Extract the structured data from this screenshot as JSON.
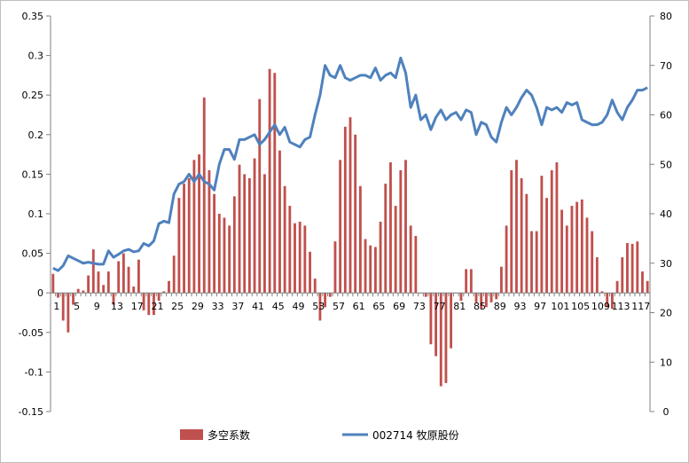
{
  "chart_data": {
    "type": "bar+line",
    "title": "",
    "xlabel": "",
    "ylabel": "",
    "x": [
      1,
      2,
      3,
      4,
      5,
      6,
      7,
      8,
      9,
      10,
      11,
      12,
      13,
      14,
      15,
      16,
      17,
      18,
      19,
      20,
      21,
      22,
      23,
      24,
      25,
      26,
      27,
      28,
      29,
      30,
      31,
      32,
      33,
      34,
      35,
      36,
      37,
      38,
      39,
      40,
      41,
      42,
      43,
      44,
      45,
      46,
      47,
      48,
      49,
      50,
      51,
      52,
      53,
      54,
      55,
      56,
      57,
      58,
      59,
      60,
      61,
      62,
      63,
      64,
      65,
      66,
      67,
      68,
      69,
      70,
      71,
      72,
      73,
      74,
      75,
      76,
      77,
      78,
      79,
      80,
      81,
      82,
      83,
      84,
      85,
      86,
      87,
      88,
      89,
      90,
      91,
      92,
      93,
      94,
      95,
      96,
      97,
      98,
      99,
      100,
      101,
      102,
      103,
      104,
      105,
      106,
      107,
      108,
      109,
      110,
      111,
      112,
      113,
      114,
      115,
      116,
      117,
      118,
      119
    ],
    "x_tick_labels": [
      "1",
      "5",
      "9",
      "13",
      "17",
      "21",
      "25",
      "29",
      "33",
      "37",
      "41",
      "45",
      "49",
      "53",
      "57",
      "61",
      "65",
      "69",
      "73",
      "77",
      "81",
      "85",
      "89",
      "93",
      "97",
      "101",
      "105",
      "109",
      "113",
      "117"
    ],
    "y_left": {
      "ylim": [
        -0.15,
        0.35
      ],
      "ticks": [
        "0.35",
        "0.3",
        "0.25",
        "0.2",
        "0.15",
        "0.1",
        "0.05",
        "0",
        "-0.05",
        "-0.1",
        "-0.15"
      ]
    },
    "y_right": {
      "ylim": [
        0,
        80
      ],
      "ticks": [
        "80",
        "70",
        "60",
        "50",
        "40",
        "30",
        "20",
        "10",
        "0"
      ]
    },
    "legend_position": "bottom",
    "colors": {
      "bar": "#c0504d",
      "line": "#4f81bd"
    },
    "series": [
      {
        "name": "多空系数",
        "kind": "bar",
        "axis": "left",
        "values": [
          0.024,
          -0.006,
          -0.035,
          -0.05,
          -0.015,
          0.005,
          0.003,
          0.022,
          0.055,
          0.027,
          0.01,
          0.027,
          -0.015,
          0.04,
          0.05,
          0.033,
          0.008,
          0.042,
          -0.022,
          -0.028,
          -0.028,
          -0.01,
          0.002,
          0.015,
          0.047,
          0.12,
          0.138,
          0.145,
          0.168,
          0.175,
          0.247,
          0.155,
          0.125,
          0.1,
          0.095,
          0.085,
          0.122,
          0.162,
          0.15,
          0.145,
          0.17,
          0.245,
          0.15,
          0.283,
          0.278,
          0.18,
          0.135,
          0.11,
          0.088,
          0.09,
          0.085,
          0.052,
          0.018,
          -0.035,
          -0.018,
          -0.005,
          0.065,
          0.168,
          0.21,
          0.222,
          0.2,
          0.135,
          0.068,
          0.06,
          0.058,
          0.09,
          0.138,
          0.165,
          0.11,
          0.155,
          0.168,
          0.085,
          0.072,
          0.0,
          -0.005,
          -0.065,
          -0.08,
          -0.118,
          -0.114,
          -0.07,
          0.0,
          -0.01,
          0.03,
          0.03,
          -0.012,
          -0.02,
          -0.018,
          -0.012,
          -0.008,
          0.033,
          0.085,
          0.155,
          0.168,
          0.145,
          0.125,
          0.078,
          0.078,
          0.148,
          0.12,
          0.155,
          0.165,
          0.105,
          0.085,
          0.11,
          0.115,
          0.118,
          0.095,
          0.078,
          0.045,
          0.002,
          -0.018,
          -0.02,
          0.015,
          0.045,
          0.063,
          0.062,
          0.065,
          0.027,
          0.015
        ]
      },
      {
        "name": "002714 牧原股份",
        "kind": "line",
        "axis": "right",
        "values": [
          29.0,
          28.5,
          29.5,
          31.5,
          31.0,
          30.5,
          30.0,
          30.2,
          30.0,
          29.8,
          29.8,
          32.5,
          31.2,
          31.8,
          32.5,
          32.8,
          32.3,
          32.5,
          34.0,
          33.5,
          34.5,
          38.0,
          38.5,
          38.2,
          44.0,
          46.0,
          46.5,
          48.0,
          46.5,
          48.0,
          46.5,
          46.0,
          44.8,
          50.0,
          53.0,
          53.0,
          51.0,
          55.0,
          55.0,
          55.5,
          56.0,
          54.0,
          55.0,
          56.5,
          58.0,
          56.0,
          57.5,
          54.5,
          54.0,
          53.5,
          55.0,
          55.5,
          60.0,
          64.0,
          70.0,
          68.0,
          67.5,
          70.0,
          67.5,
          67.0,
          67.5,
          68.0,
          68.0,
          67.5,
          69.5,
          67.0,
          68.0,
          68.5,
          67.5,
          71.5,
          68.5,
          61.5,
          64.0,
          59.0,
          60.0,
          57.0,
          59.5,
          61.0,
          59.0,
          60.0,
          60.5,
          59.0,
          61.0,
          60.5,
          56.0,
          58.5,
          58.0,
          55.5,
          54.5,
          58.5,
          61.5,
          60.0,
          61.5,
          63.5,
          65.0,
          64.0,
          61.5,
          58.0,
          61.5,
          61.0,
          61.5,
          60.5,
          62.5,
          62.0,
          62.5,
          59.0,
          58.5,
          58.0,
          58.0,
          58.5,
          60.0,
          63.0,
          60.5,
          59.0,
          61.5,
          63.0,
          65.0,
          65.0,
          65.5
        ]
      }
    ]
  }
}
